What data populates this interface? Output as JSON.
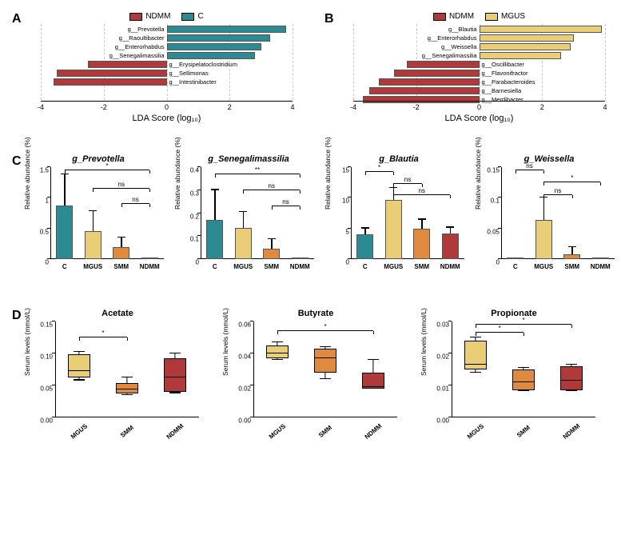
{
  "colors": {
    "ndmm": "#b03a3b",
    "c": "#2c8a92",
    "mgus": "#e9ce77",
    "smm": "#e08a3f"
  },
  "panelA": {
    "label": "A",
    "legend": [
      {
        "name": "NDMM",
        "color": "#b03a3b"
      },
      {
        "name": "C",
        "color": "#2c8a92"
      }
    ],
    "xlabel": "LDA Score (log₁₀)",
    "xmin": -4,
    "xmax": 4,
    "xticks": [
      -4,
      -2,
      0,
      2,
      4
    ],
    "bars": [
      {
        "label": "g__Prevotella",
        "value": 3.8,
        "color": "#2c8a92"
      },
      {
        "label": "g__Raoultibacter",
        "value": 3.3,
        "color": "#2c8a92"
      },
      {
        "label": "g__Enterorhabdus",
        "value": 3.0,
        "color": "#2c8a92"
      },
      {
        "label": "g__Senegalimassilia",
        "value": 2.8,
        "color": "#2c8a92"
      },
      {
        "label": "g__Erysipelatoclostridium",
        "value": -2.5,
        "color": "#b03a3b"
      },
      {
        "label": "g__Sellimonas",
        "value": -3.5,
        "color": "#b03a3b"
      },
      {
        "label": "g__Intestinibacter",
        "value": -3.6,
        "color": "#b03a3b"
      }
    ]
  },
  "panelB": {
    "label": "B",
    "legend": [
      {
        "name": "NDMM",
        "color": "#b03a3b"
      },
      {
        "name": "MGUS",
        "color": "#e9ce77"
      }
    ],
    "xlabel": "LDA Score (log₁₀)",
    "xmin": -4,
    "xmax": 4,
    "xticks": [
      -4,
      -2,
      0,
      2,
      4
    ],
    "bars": [
      {
        "label": "g__Blautia",
        "value": 3.9,
        "color": "#e9ce77"
      },
      {
        "label": "g__Enterorhabdus",
        "value": 3.0,
        "color": "#e9ce77"
      },
      {
        "label": "g__Weissella",
        "value": 2.9,
        "color": "#e9ce77"
      },
      {
        "label": "g__Senegalimassilia",
        "value": 2.6,
        "color": "#e9ce77"
      },
      {
        "label": "g__Oscillibacter",
        "value": -2.3,
        "color": "#b03a3b"
      },
      {
        "label": "g__Flavonifractor",
        "value": -2.7,
        "color": "#b03a3b"
      },
      {
        "label": "g__Parabacteroides",
        "value": -3.2,
        "color": "#b03a3b"
      },
      {
        "label": "g__Barnesiella",
        "value": -3.5,
        "color": "#b03a3b"
      },
      {
        "label": "g__Merdibacter",
        "value": -3.7,
        "color": "#b03a3b"
      }
    ]
  },
  "panelC": {
    "label": "C",
    "ylabel": "Relative abundance (%)",
    "groups": [
      "C",
      "MGUS",
      "SMM",
      "NDMM"
    ],
    "group_colors": {
      "C": "#2c8a92",
      "MGUS": "#e9ce77",
      "SMM": "#e08a3f",
      "NDMM": "#b03a3b"
    },
    "charts": [
      {
        "title": "g_Prevotella",
        "ymax": 1.5,
        "yticks": [
          0.0,
          0.5,
          1.0,
          1.5
        ],
        "values": {
          "C": 0.88,
          "MGUS": 0.46,
          "SMM": 0.19,
          "NDMM": 0.0
        },
        "errors": {
          "C": 0.5,
          "MGUS": 0.32,
          "SMM": 0.16,
          "NDMM": 0.0
        },
        "sig": [
          {
            "from": 0,
            "to": 3,
            "y": 1.45,
            "label": "*"
          },
          {
            "from": 1,
            "to": 3,
            "y": 1.15,
            "label": "ns"
          },
          {
            "from": 2,
            "to": 3,
            "y": 0.9,
            "label": "ns"
          }
        ]
      },
      {
        "title": "g_Senegalimassilia",
        "ymax": 0.4,
        "yticks": [
          0.0,
          0.1,
          0.2,
          0.3,
          0.4
        ],
        "values": {
          "C": 0.17,
          "MGUS": 0.135,
          "SMM": 0.047,
          "NDMM": 0.0
        },
        "errors": {
          "C": 0.13,
          "MGUS": 0.07,
          "SMM": 0.04,
          "NDMM": 0.0
        },
        "sig": [
          {
            "from": 0,
            "to": 3,
            "y": 0.37,
            "label": "**"
          },
          {
            "from": 1,
            "to": 3,
            "y": 0.3,
            "label": "ns"
          },
          {
            "from": 2,
            "to": 3,
            "y": 0.23,
            "label": "ns"
          }
        ]
      },
      {
        "title": "g_Blautia",
        "ymax": 15,
        "yticks": [
          0,
          5,
          10,
          15
        ],
        "values": {
          "C": 4.1,
          "MGUS": 9.7,
          "SMM": 5.0,
          "NDMM": 4.2
        },
        "errors": {
          "C": 0.9,
          "MGUS": 1.9,
          "SMM": 1.4,
          "NDMM": 0.9
        },
        "sig": [
          {
            "from": 0,
            "to": 1,
            "y": 14.2,
            "label": "*"
          },
          {
            "from": 1,
            "to": 2,
            "y": 12.3,
            "label": "ns"
          },
          {
            "from": 1,
            "to": 3,
            "y": 10.5,
            "label": "ns"
          }
        ]
      },
      {
        "title": "g_Weissella",
        "ymax": 0.15,
        "yticks": [
          0.0,
          0.05,
          0.1,
          0.15
        ],
        "values": {
          "C": 0.0,
          "MGUS": 0.064,
          "SMM": 0.008,
          "NDMM": 0.0
        },
        "errors": {
          "C": 0.0,
          "MGUS": 0.036,
          "SMM": 0.011,
          "NDMM": 0.0
        },
        "sig": [
          {
            "from": 0,
            "to": 1,
            "y": 0.145,
            "label": "ns"
          },
          {
            "from": 1,
            "to": 3,
            "y": 0.125,
            "label": "*"
          },
          {
            "from": 1,
            "to": 2,
            "y": 0.105,
            "label": "ns"
          }
        ]
      }
    ]
  },
  "panelD": {
    "label": "D",
    "ylabel": "Serum levels (mmol/L)",
    "groups": [
      "MGUS",
      "SMM",
      "NDMM"
    ],
    "group_colors": {
      "MGUS": "#e9ce77",
      "SMM": "#e08a3f",
      "NDMM": "#b03a3b"
    },
    "charts": [
      {
        "title": "Acetate",
        "ymax": 0.15,
        "yticks": [
          0.0,
          0.05,
          0.1,
          0.15
        ],
        "boxes": {
          "MGUS": {
            "q1": 0.063,
            "med": 0.072,
            "q3": 0.099,
            "lo": 0.058,
            "hi": 0.102
          },
          "SMM": {
            "q1": 0.038,
            "med": 0.044,
            "q3": 0.054,
            "lo": 0.035,
            "hi": 0.062
          },
          "NDMM": {
            "q1": 0.04,
            "med": 0.062,
            "q3": 0.092,
            "lo": 0.038,
            "hi": 0.1
          }
        },
        "sig": [
          {
            "from": 0,
            "to": 1,
            "y": 0.125,
            "label": "*"
          }
        ]
      },
      {
        "title": "Butyrate",
        "ymax": 0.06,
        "yticks": [
          0.0,
          0.02,
          0.04,
          0.06
        ],
        "boxes": {
          "MGUS": {
            "q1": 0.037,
            "med": 0.04,
            "q3": 0.045,
            "lo": 0.036,
            "hi": 0.047
          },
          "SMM": {
            "q1": 0.028,
            "med": 0.037,
            "q3": 0.043,
            "lo": 0.024,
            "hi": 0.044
          },
          "NDMM": {
            "q1": 0.018,
            "med": 0.019,
            "q3": 0.028,
            "lo": 0.018,
            "hi": 0.036
          }
        },
        "sig": [
          {
            "from": 0,
            "to": 2,
            "y": 0.054,
            "label": "*"
          }
        ]
      },
      {
        "title": "Propionate",
        "ymax": 0.03,
        "yticks": [
          0.0,
          0.01,
          0.02,
          0.03
        ],
        "boxes": {
          "MGUS": {
            "q1": 0.015,
            "med": 0.0165,
            "q3": 0.024,
            "lo": 0.014,
            "hi": 0.025
          },
          "SMM": {
            "q1": 0.0085,
            "med": 0.011,
            "q3": 0.015,
            "lo": 0.0082,
            "hi": 0.0155
          },
          "NDMM": {
            "q1": 0.0085,
            "med": 0.0115,
            "q3": 0.016,
            "lo": 0.0082,
            "hi": 0.0165
          }
        },
        "sig": [
          {
            "from": 0,
            "to": 2,
            "y": 0.029,
            "label": "*"
          },
          {
            "from": 0,
            "to": 1,
            "y": 0.0265,
            "label": "*"
          }
        ]
      }
    ]
  }
}
